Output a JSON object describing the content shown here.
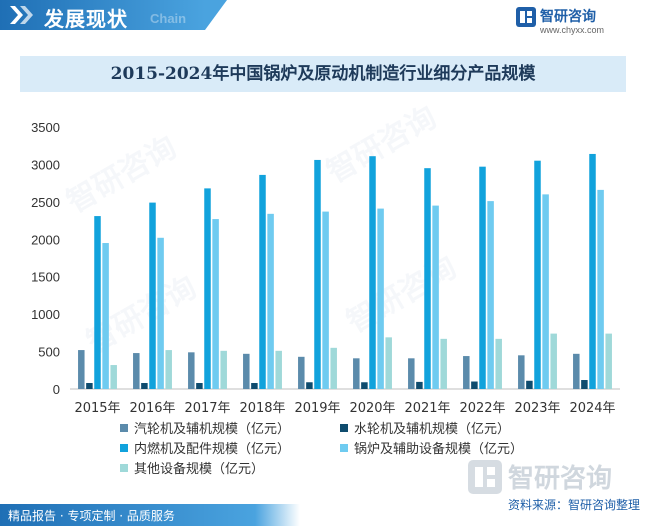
{
  "header": {
    "title": "发展现状",
    "subtitle": "Chain"
  },
  "brand": {
    "name": "智研咨询",
    "url": "www.chyxx.com",
    "icon": "zhiyan-logo-icon"
  },
  "colors": {
    "header_blue": "#1f6fb5",
    "title_band": "#d9ebf8",
    "series": [
      "#5b8bab",
      "#0f4c6e",
      "#11a2dc",
      "#6fcbf0",
      "#9fd9d9"
    ]
  },
  "chart_data": {
    "type": "bar",
    "title": "2015-2024年中国锅炉及原动机制造行业细分产品规模",
    "categories": [
      "2015年",
      "2016年",
      "2017年",
      "2018年",
      "2019年",
      "2020年",
      "2021年",
      "2022年",
      "2023年",
      "2024年"
    ],
    "ylim": [
      0,
      3500
    ],
    "yticks": [
      "0",
      "500",
      "1000",
      "1500",
      "2000",
      "2500",
      "3000",
      "3500"
    ],
    "grid": false,
    "legend_position": "bottom",
    "series": [
      {
        "name": "汽轮机及辅机规模（亿元）",
        "values": [
          520,
          480,
          490,
          470,
          430,
          410,
          410,
          440,
          450,
          470
        ]
      },
      {
        "name": "水轮机及辅机规模（亿元）",
        "values": [
          80,
          80,
          80,
          80,
          90,
          90,
          95,
          100,
          110,
          120
        ]
      },
      {
        "name": "内燃机及配件规模（亿元）",
        "values": [
          2310,
          2490,
          2680,
          2860,
          3060,
          3110,
          2950,
          2970,
          3050,
          3140
        ]
      },
      {
        "name": "锅炉及辅助设备规模（亿元）",
        "values": [
          1950,
          2020,
          2270,
          2340,
          2370,
          2410,
          2450,
          2510,
          2600,
          2660
        ]
      },
      {
        "name": "其他设备规模（亿元）",
        "values": [
          320,
          520,
          510,
          510,
          550,
          690,
          670,
          670,
          740,
          740
        ]
      }
    ]
  },
  "footer": {
    "tagline": "精品报告 · 专项定制 · 品质服务",
    "source": "资料来源：智研咨询整理"
  },
  "watermark": {
    "text": "智研咨询"
  }
}
